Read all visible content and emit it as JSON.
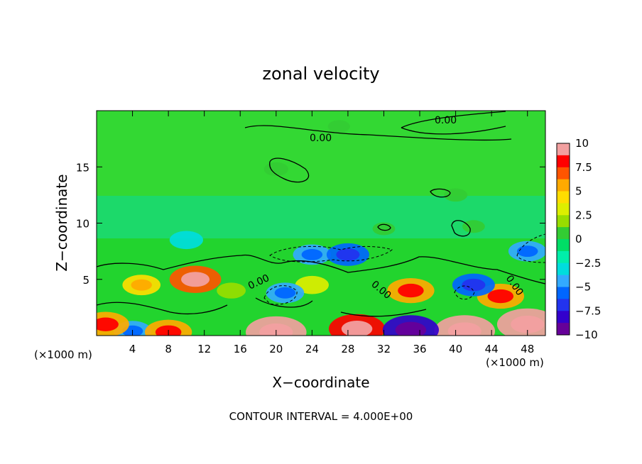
{
  "chart_data": {
    "type": "heatmap",
    "title": "zonal velocity",
    "xlabel": "X−coordinate",
    "ylabel": "Z−coordinate",
    "x_units_left": "(×1000 m)",
    "x_units_right": "(×1000 m)",
    "xlim": [
      0,
      50
    ],
    "ylim": [
      0,
      20
    ],
    "x_ticks": [
      4,
      8,
      12,
      16,
      20,
      24,
      28,
      32,
      36,
      40,
      44,
      48
    ],
    "y_ticks": [
      5,
      10,
      15
    ],
    "footer": "CONTOUR INTERVAL = 4.000E+00",
    "contour_interval": 4.0,
    "contour_labels": [
      "0.00",
      "0.00",
      "0.00",
      "0.00",
      "0.00"
    ],
    "colorbar": {
      "labels": [
        "10",
        "7.5",
        "5",
        "2.5",
        "0",
        "−2.5",
        "−5",
        "−7.5",
        "−10"
      ],
      "min": -10,
      "max": 10,
      "colors": [
        "#f2a0a0",
        "#ff0000",
        "#ff5500",
        "#ffaa00",
        "#ffdd00",
        "#ddee00",
        "#99dd00",
        "#33cc33",
        "#00dd66",
        "#00eeaa",
        "#00dddd",
        "#33aaff",
        "#0066ff",
        "#2233ee",
        "#3300cc",
        "#660099"
      ]
    },
    "field_features": [
      {
        "x": 27,
        "z": 18.6,
        "value": 0.5
      },
      {
        "x": 20,
        "z": 14.8,
        "value": 1.0
      },
      {
        "x": 40,
        "z": 12.5,
        "value": 0.8
      },
      {
        "x": 42,
        "z": 9.7,
        "value": 0.6
      },
      {
        "x": 32,
        "z": 9.5,
        "value": 0.6
      },
      {
        "x": 10,
        "z": 8.5,
        "value": -3
      },
      {
        "x": 24,
        "z": 7.2,
        "value": -4
      },
      {
        "x": 28,
        "z": 7.2,
        "value": -5
      },
      {
        "x": 48,
        "z": 7.5,
        "value": -4
      },
      {
        "x": 5,
        "z": 4.5,
        "value": 4
      },
      {
        "x": 11,
        "z": 5.0,
        "value": 7
      },
      {
        "x": 15,
        "z": 4.0,
        "value": 2
      },
      {
        "x": 24,
        "z": 4.5,
        "value": 3
      },
      {
        "x": 35,
        "z": 4.0,
        "value": 6
      },
      {
        "x": 45,
        "z": 3.5,
        "value": 6
      },
      {
        "x": 42,
        "z": 4.5,
        "value": -5
      },
      {
        "x": 21,
        "z": 3.8,
        "value": -4
      },
      {
        "x": 20,
        "z": 0.3,
        "value": 9
      },
      {
        "x": 29,
        "z": 0.6,
        "value": 8
      },
      {
        "x": 41,
        "z": 0.4,
        "value": 9
      },
      {
        "x": 48,
        "z": 1.0,
        "value": 9
      },
      {
        "x": 35,
        "z": 0.5,
        "value": -8
      },
      {
        "x": 4,
        "z": 0.4,
        "value": -4
      },
      {
        "x": 8,
        "z": 0.3,
        "value": 6
      },
      {
        "x": 1,
        "z": 1.0,
        "value": 6
      }
    ]
  }
}
